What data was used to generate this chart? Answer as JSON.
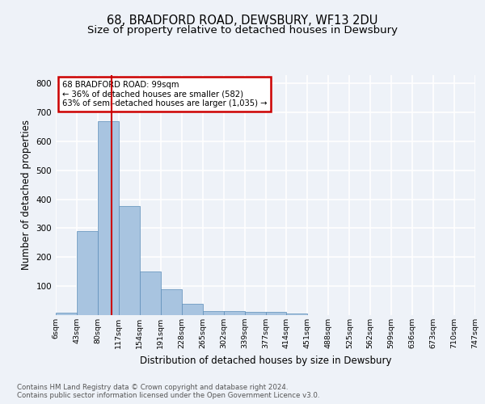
{
  "title1": "68, BRADFORD ROAD, DEWSBURY, WF13 2DU",
  "title2": "Size of property relative to detached houses in Dewsbury",
  "xlabel": "Distribution of detached houses by size in Dewsbury",
  "ylabel": "Number of detached properties",
  "bin_labels": [
    "6sqm",
    "43sqm",
    "80sqm",
    "117sqm",
    "154sqm",
    "191sqm",
    "228sqm",
    "265sqm",
    "302sqm",
    "339sqm",
    "377sqm",
    "414sqm",
    "451sqm",
    "488sqm",
    "525sqm",
    "562sqm",
    "599sqm",
    "636sqm",
    "673sqm",
    "710sqm",
    "747sqm"
  ],
  "bar_heights": [
    8,
    290,
    670,
    378,
    152,
    88,
    40,
    14,
    14,
    10,
    10,
    5,
    0,
    0,
    0,
    0,
    0,
    0,
    0,
    0
  ],
  "bar_color": "#a8c4e0",
  "bar_edge_color": "#5b8db8",
  "vline_x": 2.65,
  "vline_color": "#cc0000",
  "annotation_text": "68 BRADFORD ROAD: 99sqm\n← 36% of detached houses are smaller (582)\n63% of semi-detached houses are larger (1,035) →",
  "annotation_box_color": "#cc0000",
  "ylim": [
    0,
    830
  ],
  "yticks": [
    0,
    100,
    200,
    300,
    400,
    500,
    600,
    700,
    800
  ],
  "footer": "Contains HM Land Registry data © Crown copyright and database right 2024.\nContains public sector information licensed under the Open Government Licence v3.0.",
  "bg_color": "#eef2f8",
  "plot_bg_color": "#eef2f8",
  "grid_color": "#ffffff",
  "title1_fontsize": 10.5,
  "title2_fontsize": 9.5,
  "xlabel_fontsize": 8.5,
  "ylabel_fontsize": 8.5
}
